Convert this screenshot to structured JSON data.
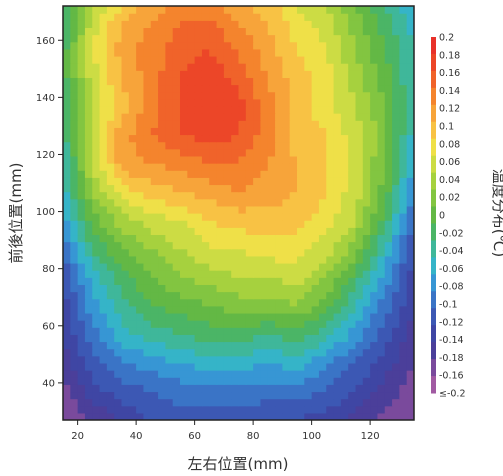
{
  "chart_data": {
    "type": "heatmap",
    "xlabel": "左右位置(mm)",
    "ylabel": "前後位置(mm)",
    "colorbar_label": "温度分布(℃)",
    "x_ticks": [
      "20",
      "40",
      "60",
      "80",
      "100",
      "120"
    ],
    "y_ticks": [
      "160",
      "140",
      "120",
      "100",
      "80",
      "60",
      "40"
    ],
    "xlim": [
      15,
      135
    ],
    "ylim": [
      27,
      172
    ],
    "colorbar_ticks": [
      "0.2",
      "0.18",
      "0.16",
      "0.14",
      "0.12",
      "0.1",
      "0.08",
      "0.06",
      "0.04",
      "0.02",
      "0",
      "-0.02",
      "-0.04",
      "-0.06",
      "-0.08",
      "-0.1",
      "-0.12",
      "-0.14",
      "-0.18",
      "-0.16",
      "≤-0.2"
    ],
    "colorbar_colors": [
      "#e8312a",
      "#ec4628",
      "#f0632a",
      "#f4842d",
      "#f7a43a",
      "#f8c244",
      "#efe048",
      "#ccdc44",
      "#a6d13e",
      "#82c541",
      "#63b845",
      "#4bb566",
      "#3fb79a",
      "#35b4c8",
      "#3796d4",
      "#3a74c6",
      "#3c58b4",
      "#3f46a4",
      "#4b3f9a",
      "#7a4a9c",
      "#a15aa2"
    ],
    "x_grid": [
      15,
      25,
      35,
      45,
      55,
      65,
      75,
      85,
      95,
      105,
      115,
      125,
      135
    ],
    "y_grid": [
      27,
      37,
      47,
      57,
      67,
      77,
      87,
      97,
      107,
      117,
      127,
      137,
      147,
      157,
      167,
      172
    ],
    "values": [
      [
        -0.19,
        -0.17,
        -0.15,
        -0.13,
        -0.12,
        -0.12,
        -0.12,
        -0.13,
        -0.13,
        -0.14,
        -0.16,
        -0.18,
        -0.19
      ],
      [
        -0.18,
        -0.14,
        -0.12,
        -0.11,
        -0.1,
        -0.1,
        -0.1,
        -0.1,
        -0.1,
        -0.11,
        -0.13,
        -0.16,
        -0.18
      ],
      [
        -0.16,
        -0.12,
        -0.09,
        -0.08,
        -0.07,
        -0.06,
        -0.06,
        -0.07,
        -0.06,
        -0.09,
        -0.11,
        -0.14,
        -0.17
      ],
      [
        -0.15,
        -0.1,
        -0.06,
        -0.04,
        -0.03,
        -0.02,
        -0.02,
        -0.03,
        -0.02,
        -0.04,
        -0.08,
        -0.12,
        -0.16
      ],
      [
        -0.14,
        -0.08,
        -0.04,
        -0.01,
        0.0,
        0.01,
        0.02,
        0.02,
        0.03,
        0.0,
        -0.05,
        -0.1,
        -0.15
      ],
      [
        -0.13,
        -0.06,
        -0.02,
        0.01,
        0.03,
        0.04,
        0.05,
        0.05,
        0.06,
        0.03,
        -0.02,
        -0.08,
        -0.14
      ],
      [
        -0.11,
        -0.03,
        0.01,
        0.03,
        0.05,
        0.07,
        0.07,
        0.08,
        0.08,
        0.06,
        0.02,
        -0.05,
        -0.13
      ],
      [
        -0.08,
        0.0,
        0.04,
        0.06,
        0.07,
        0.09,
        0.1,
        0.1,
        0.1,
        0.08,
        0.05,
        -0.02,
        -0.11
      ],
      [
        -0.06,
        0.03,
        0.08,
        0.1,
        0.11,
        0.12,
        0.13,
        0.12,
        0.11,
        0.09,
        0.06,
        0.0,
        -0.09
      ],
      [
        -0.05,
        0.05,
        0.12,
        0.13,
        0.14,
        0.15,
        0.15,
        0.13,
        0.11,
        0.09,
        0.06,
        0.01,
        -0.07
      ],
      [
        -0.04,
        0.06,
        0.12,
        0.15,
        0.17,
        0.18,
        0.17,
        0.14,
        0.1,
        0.09,
        0.06,
        0.02,
        -0.06
      ],
      [
        -0.03,
        0.06,
        0.1,
        0.14,
        0.17,
        0.19,
        0.18,
        0.14,
        0.1,
        0.08,
        0.05,
        0.01,
        -0.05
      ],
      [
        -0.02,
        0.06,
        0.11,
        0.14,
        0.17,
        0.19,
        0.16,
        0.13,
        0.1,
        0.08,
        0.04,
        0.0,
        -0.05
      ],
      [
        -0.02,
        0.07,
        0.12,
        0.14,
        0.16,
        0.17,
        0.15,
        0.12,
        0.09,
        0.07,
        0.03,
        -0.01,
        -0.05
      ],
      [
        -0.03,
        0.06,
        0.11,
        0.13,
        0.15,
        0.15,
        0.13,
        0.11,
        0.08,
        0.06,
        0.02,
        -0.02,
        -0.06
      ],
      [
        -0.04,
        0.05,
        0.09,
        0.12,
        0.13,
        0.13,
        0.12,
        0.1,
        0.07,
        0.05,
        0.01,
        -0.03,
        -0.07
      ]
    ]
  }
}
